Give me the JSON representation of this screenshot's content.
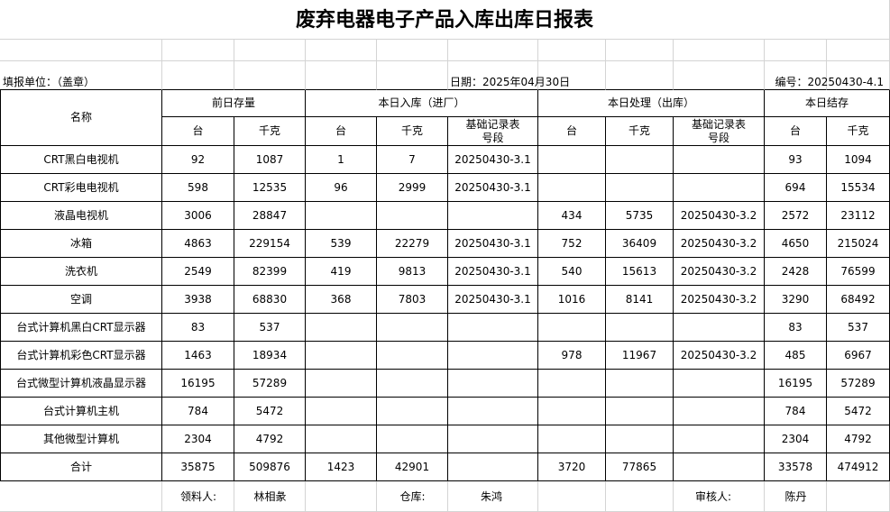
{
  "title": "废弃电器电子产品入库出库日报表",
  "info": {
    "unit": "填报单位：（盖章）",
    "date": "日期：2025年04月30日",
    "number": "编号：20250430-4.1"
  },
  "table": {
    "header_groups": [
      "名称",
      "前日存量",
      "本日入库（进厂）",
      "本日处理（出库）",
      "本日结存"
    ],
    "header_sub": [
      "台",
      "千克",
      "台",
      "千克",
      [
        "基础记录表",
        "号段"
      ],
      "台",
      "千克",
      [
        "基础记录表",
        "号段"
      ],
      "台",
      "千克"
    ],
    "rows": [
      [
        "CRT黑白电视机",
        92,
        1087,
        1,
        7,
        "20250430-3.1",
        null,
        null,
        null,
        93,
        1094
      ],
      [
        "CRT彩电电视机",
        598,
        12535,
        96,
        2999,
        "20250430-3.1",
        null,
        null,
        null,
        694,
        15534
      ],
      [
        "液晶电视机",
        3006,
        28847,
        null,
        null,
        null,
        434,
        5735,
        "20250430-3.2",
        2572,
        23112
      ],
      [
        "冰箱",
        4863,
        229154,
        539,
        22279,
        "20250430-3.1",
        752,
        36409,
        "20250430-3.2",
        4650,
        215024
      ],
      [
        "洗衣机",
        2549,
        82399,
        419,
        9813,
        "20250430-3.1",
        540,
        15613,
        "20250430-3.2",
        2428,
        76599
      ],
      [
        "空调",
        3938,
        68830,
        368,
        7803,
        "20250430-3.1",
        1016,
        8141,
        "20250430-3.2",
        3290,
        68492
      ],
      [
        "台式计算机黑白CRT显示器",
        83,
        537,
        null,
        null,
        null,
        null,
        null,
        null,
        83,
        537
      ],
      [
        "台式计算机彩色CRT显示器",
        1463,
        18934,
        null,
        null,
        null,
        978,
        11967,
        "20250430-3.2",
        485,
        6967
      ],
      [
        "台式微型计算机液晶显示器",
        16195,
        57289,
        null,
        null,
        null,
        null,
        null,
        null,
        16195,
        57289
      ],
      [
        "台式计算机主机",
        784,
        5472,
        null,
        null,
        null,
        null,
        null,
        null,
        784,
        5472
      ],
      [
        "其他微型计算机",
        2304,
        4792,
        null,
        null,
        null,
        null,
        null,
        null,
        2304,
        4792
      ],
      [
        "合计",
        35875,
        509876,
        1423,
        42901,
        null,
        3720,
        77865,
        null,
        33578,
        474912
      ]
    ]
  },
  "footer": {
    "receiver_label": "领料人:",
    "receiver": "林相彖",
    "warehouse_label": "仓库:",
    "warehouse": "朱鸿",
    "reviewer_label": "审核人:",
    "reviewer": "陈丹"
  }
}
